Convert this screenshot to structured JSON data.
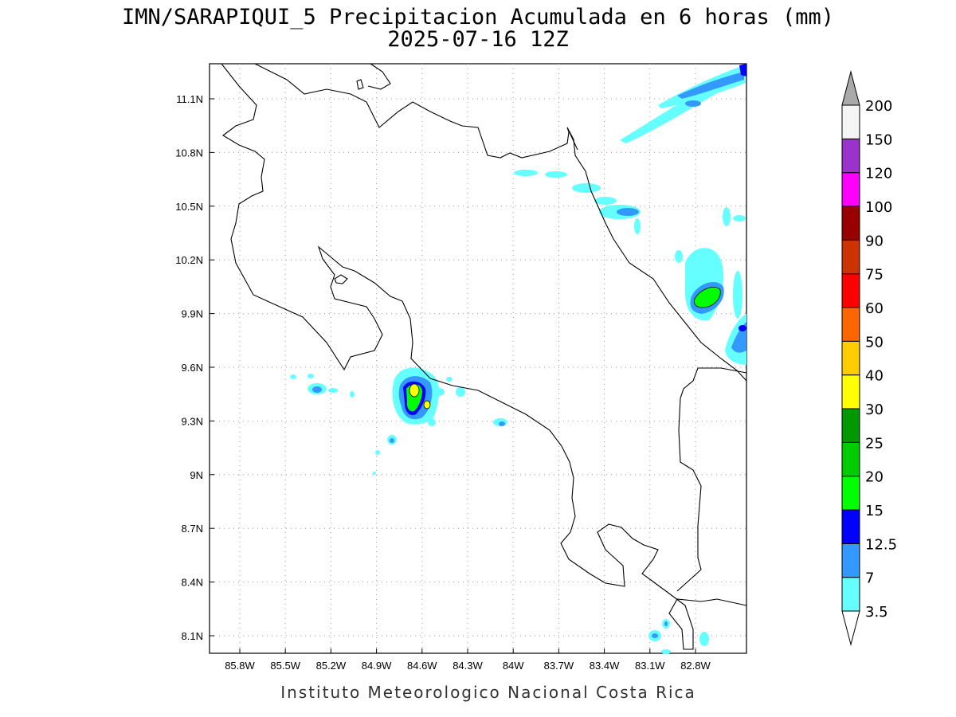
{
  "title_line1": "IMN/SARAPIQUI_5 Precipitacion Acumulada en 6 horas (mm)",
  "title_line2": "2025-07-16 12Z",
  "credit": "Instituto Meteorologico Nacional Costa Rica",
  "axes": {
    "lon_ticks": [
      "85.8W",
      "85.5W",
      "85.2W",
      "84.9W",
      "84.6W",
      "84.3W",
      "84W",
      "83.7W",
      "83.4W",
      "83.1W",
      "82.8W"
    ],
    "lat_ticks": [
      "11.1N",
      "10.8N",
      "10.5N",
      "10.2N",
      "9.9N",
      "9.6N",
      "9.3N",
      "9N",
      "8.7N",
      "8.4N",
      "8.1N"
    ]
  },
  "colorbar": {
    "levels": [
      "3.5",
      "7",
      "12.5",
      "15",
      "20",
      "25",
      "30",
      "40",
      "50",
      "60",
      "75",
      "90",
      "100",
      "120",
      "150",
      "200"
    ],
    "colors": [
      "#66ffff",
      "#3399ff",
      "#0000ff",
      "#00ff00",
      "#00cc00",
      "#009900",
      "#ffff00",
      "#ffcc00",
      "#ff6600",
      "#ff0000",
      "#cc3300",
      "#990000",
      "#ff00ff",
      "#9933cc",
      "#f5f5f5",
      "#a9a9a9"
    ]
  }
}
